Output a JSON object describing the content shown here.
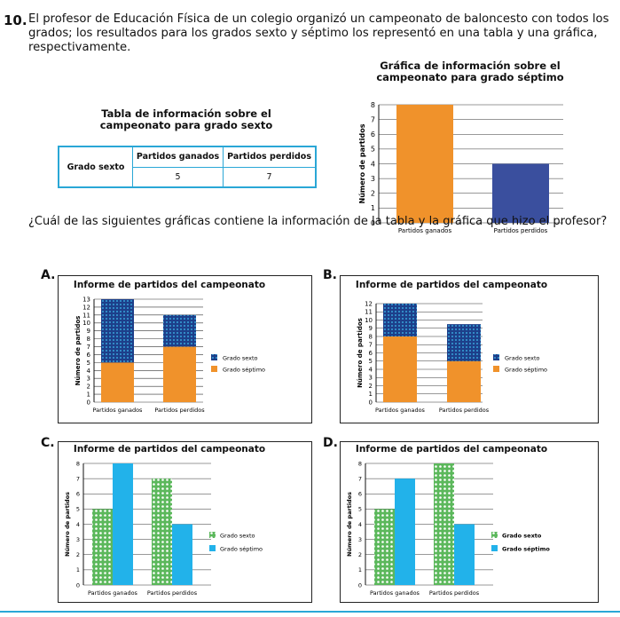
{
  "question": {
    "number": "10.",
    "text": "El profesor de Educación Física de un colegio organizó un campeonato de baloncesto con todos los grados; los resultados para los grados sexto y séptimo los representó en una tabla y una gráfica, respectivamente.",
    "stem": "¿Cuál de las siguientes gráficas contiene la información de la tabla y la gráfica que hizo el profesor?"
  },
  "table": {
    "caption_line1": "Tabla de información sobre el",
    "caption_line2": "campeonato para grado sexto",
    "row_header": "Grado sexto",
    "col1": "Partidos ganados",
    "col2": "Partidos perdidos",
    "val1": "5",
    "val2": "7"
  },
  "top_chart_title1": "Gráfica de información sobre el",
  "top_chart_title2": "campeonato para grado séptimo",
  "options": {
    "A": {
      "letter": "A.",
      "title": "Informe de partidos del campeonato"
    },
    "B": {
      "letter": "B.",
      "title": "Informe de partidos del campeonato"
    },
    "C": {
      "letter": "C.",
      "title": "Informe de partidos del campeonato"
    },
    "D": {
      "letter": "D.",
      "title": "Informe de partidos del campeonato"
    }
  },
  "colors": {
    "orange": "#f0922b",
    "navy": "#3a4f9e",
    "sky": "#22b2ea",
    "green": "#5cb85c",
    "border": "#2aa7d6"
  },
  "chart_data": [
    {
      "type": "bar",
      "id": "top",
      "title": "Gráfica de información sobre el campeonato para grado séptimo",
      "categories": [
        "Partidos ganados",
        "Partidos perdidos"
      ],
      "values": [
        8,
        4
      ],
      "colors": [
        "#f0922b",
        "#3a4f9e"
      ],
      "ylabel": "Número de partidos",
      "ylim": [
        0,
        8
      ]
    },
    {
      "type": "bar",
      "id": "A",
      "stacked": true,
      "title": "Informe de partidos del campeonato",
      "categories": [
        "Partidos ganados",
        "Partidos perdidos"
      ],
      "series": [
        {
          "name": "Grado séptimo",
          "values": [
            5,
            7
          ]
        },
        {
          "name": "Grado sexto",
          "values": [
            8,
            4
          ]
        }
      ],
      "ylabel": "Número de partidos",
      "ylim": [
        0,
        13
      ]
    },
    {
      "type": "bar",
      "id": "B",
      "stacked": true,
      "title": "Informe de partidos del campeonato",
      "categories": [
        "Partidos ganados",
        "Partidos perdidos"
      ],
      "series": [
        {
          "name": "Grado séptimo",
          "values": [
            8,
            5
          ]
        },
        {
          "name": "Grado sexto",
          "values": [
            4,
            4.5
          ]
        }
      ],
      "ylabel": "Número de partidos",
      "ylim": [
        0,
        12
      ]
    },
    {
      "type": "bar",
      "id": "C",
      "title": "Informe de partidos del campeonato",
      "categories": [
        "Partidos ganados",
        "Partidos perdidos"
      ],
      "series": [
        {
          "name": "Grado sexto",
          "values": [
            5,
            7
          ]
        },
        {
          "name": "Grado séptimo",
          "values": [
            8,
            4
          ]
        }
      ],
      "ylabel": "Número de partidos",
      "ylim": [
        0,
        8
      ]
    },
    {
      "type": "bar",
      "id": "D",
      "title": "Informe de partidos del campeonato",
      "categories": [
        "Partidos ganados",
        "Partidos perdidos"
      ],
      "series": [
        {
          "name": "Grado sexto",
          "values": [
            5,
            8
          ]
        },
        {
          "name": "Grado séptimo",
          "values": [
            7,
            4
          ]
        }
      ],
      "ylabel": "Número de partidos",
      "ylim": [
        0,
        8
      ]
    }
  ]
}
